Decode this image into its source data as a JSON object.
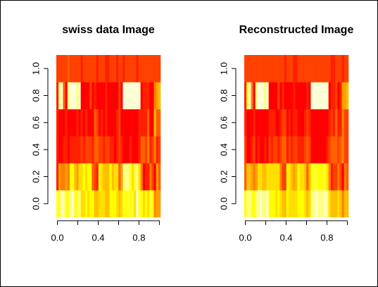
{
  "chart_data": [
    {
      "type": "heatmap",
      "title": "swiss data Image",
      "values": [
        [
          80.2,
          83.1,
          92.5,
          85.8,
          76.9,
          76.1,
          83.8,
          92.4,
          82.4,
          82.9,
          87.1,
          64.1,
          66.9,
          68.9,
          61.7,
          68.3,
          71.7,
          55.7,
          54.3,
          65.1,
          65.5,
          65,
          56.6,
          57.4,
          72.5,
          74.2,
          72,
          60.5,
          58.3,
          65.4,
          75.5,
          69.3,
          77.3,
          70.5,
          79.4,
          65,
          92.2,
          79.3,
          70.4,
          65.7,
          72.7,
          64.4,
          77.6,
          67.6,
          35,
          44.7,
          42.8
        ],
        [
          17,
          45.1,
          39.7,
          36.5,
          43.5,
          35.3,
          70.2,
          67.8,
          53.3,
          45.2,
          64.5,
          62,
          67.5,
          60.7,
          69.3,
          72.6,
          34,
          19.4,
          15.2,
          73,
          59.8,
          55.1,
          50.9,
          54.1,
          71.2,
          58.1,
          63.5,
          60.8,
          26.8,
          49.5,
          85.9,
          84.9,
          89.7,
          78.2,
          64.9,
          75.9,
          84.6,
          63.1,
          38.4,
          7.7,
          16.7,
          17.6,
          37.6,
          18.7,
          1.2,
          46.6,
          27.7
        ],
        [
          15,
          6,
          5,
          12,
          17,
          9,
          16,
          14,
          12,
          16,
          14,
          21,
          14,
          19,
          22,
          18,
          17,
          26,
          31,
          19,
          22,
          14,
          22,
          20,
          12,
          14,
          6,
          16,
          25,
          15,
          3,
          7,
          5,
          12,
          7,
          9,
          3,
          13,
          26,
          29,
          22,
          35,
          15,
          25,
          37,
          16,
          22
        ],
        [
          12,
          9,
          5,
          7,
          15,
          7,
          7,
          8,
          7,
          13,
          6,
          12,
          7,
          12,
          5,
          2,
          8,
          28,
          20,
          9,
          10,
          3,
          12,
          6,
          1,
          8,
          3,
          10,
          19,
          8,
          2,
          6,
          2,
          6,
          3,
          9,
          3,
          13,
          12,
          11,
          13,
          32,
          7,
          7,
          53,
          29,
          29
        ],
        [
          9.96,
          84.84,
          93.4,
          33.77,
          5.16,
          90.57,
          92.85,
          97.16,
          97.67,
          91.38,
          98.61,
          8.52,
          2.27,
          4.43,
          2.82,
          24.2,
          3.3,
          12.11,
          2.15,
          2.84,
          5.23,
          4.52,
          15.14,
          4.2,
          2.4,
          5.23,
          2.56,
          7.72,
          18.46,
          6.1,
          99.71,
          99.68,
          100,
          98.96,
          98.22,
          99.06,
          99.46,
          96.83,
          5.62,
          13.79,
          11.22,
          16.92,
          4.97,
          8.65,
          42.34,
          50.43,
          58.33
        ],
        [
          22.2,
          22.2,
          20.2,
          20.3,
          20.6,
          26.6,
          23.6,
          24.9,
          21,
          24.4,
          24.5,
          16.5,
          19.1,
          22.7,
          18.7,
          21.2,
          20,
          20.2,
          10.8,
          20,
          18,
          22.4,
          16.7,
          15.3,
          21,
          23.8,
          18,
          16.3,
          20.9,
          22.5,
          15.1,
          19.8,
          18.3,
          19.4,
          20.2,
          17.8,
          16.3,
          18.1,
          20.3,
          20.5,
          18.9,
          23,
          20,
          19.5,
          18,
          18.2,
          19.3
        ]
      ],
      "zlim": [
        1.2,
        100
      ],
      "palette": [
        "#FF0000",
        "#FF2000",
        "#FF4000",
        "#FF6000",
        "#FF8000",
        "#FF9F00",
        "#FFBF00",
        "#FFDF00",
        "#FFFF00",
        "#FFFF2A",
        "#FFFF80",
        "#FFFFD5"
      ],
      "xlim": [
        -0.0109,
        1.0109
      ],
      "ylim": [
        -0.1,
        1.1
      ],
      "xticks": [
        {
          "value": 0,
          "label": "0.0"
        },
        {
          "value": 0.2
        },
        {
          "value": 0.4,
          "label": "0.4"
        },
        {
          "value": 0.6
        },
        {
          "value": 0.8,
          "label": "0.8"
        },
        {
          "value": 1
        }
      ],
      "yticks": [
        {
          "value": 0,
          "label": "0.0"
        },
        {
          "value": 0.2,
          "label": "0.2"
        },
        {
          "value": 0.4,
          "label": "0.4"
        },
        {
          "value": 0.6,
          "label": "0.6"
        },
        {
          "value": 0.8,
          "label": "0.8"
        },
        {
          "value": 1,
          "label": "1.0"
        }
      ]
    },
    {
      "type": "heatmap",
      "title": "Reconstructed Image",
      "values": [
        [
          70,
          85,
          88,
          75,
          68,
          84,
          88,
          90,
          88,
          86,
          90,
          66,
          66,
          68,
          64,
          70,
          62,
          56,
          52,
          68,
          64,
          62,
          58,
          58,
          70,
          68,
          68,
          62,
          56,
          64,
          88,
          88,
          90,
          88,
          86,
          88,
          90,
          86,
          60,
          52,
          54,
          50,
          60,
          56,
          40,
          56,
          52
        ],
        [
          30,
          50,
          50,
          42,
          40,
          48,
          62,
          62,
          56,
          50,
          60,
          58,
          60,
          58,
          64,
          64,
          36,
          24,
          20,
          66,
          58,
          56,
          48,
          52,
          66,
          58,
          62,
          56,
          30,
          52,
          72,
          74,
          76,
          72,
          68,
          70,
          74,
          62,
          36,
          16,
          22,
          20,
          38,
          24,
          8,
          40,
          30
        ],
        [
          18,
          8,
          6,
          12,
          18,
          8,
          10,
          8,
          8,
          10,
          6,
          18,
          16,
          18,
          20,
          16,
          18,
          26,
          30,
          16,
          18,
          16,
          22,
          20,
          14,
          16,
          14,
          18,
          26,
          18,
          4,
          4,
          4,
          6,
          6,
          6,
          4,
          10,
          24,
          30,
          26,
          32,
          18,
          26,
          36,
          20,
          24
        ],
        [
          12,
          6,
          4,
          8,
          14,
          6,
          4,
          4,
          4,
          8,
          4,
          10,
          10,
          10,
          8,
          6,
          10,
          22,
          22,
          8,
          10,
          8,
          12,
          10,
          4,
          8,
          6,
          10,
          18,
          10,
          2,
          2,
          2,
          4,
          4,
          4,
          2,
          8,
          14,
          18,
          16,
          26,
          10,
          16,
          40,
          22,
          24
        ],
        [
          12,
          80,
          90,
          40,
          8,
          86,
          92,
          96,
          94,
          88,
          96,
          8,
          4,
          6,
          4,
          20,
          6,
          14,
          6,
          6,
          8,
          8,
          14,
          6,
          4,
          8,
          4,
          8,
          16,
          8,
          96,
          96,
          98,
          96,
          94,
          96,
          96,
          92,
          8,
          12,
          12,
          18,
          8,
          10,
          42,
          48,
          54
        ],
        [
          20,
          22,
          22,
          20,
          19,
          22,
          23,
          23,
          22,
          22,
          23,
          18,
          18,
          19,
          18,
          19,
          18,
          18,
          14,
          19,
          18,
          19,
          17,
          17,
          20,
          20,
          19,
          18,
          18,
          19,
          22,
          22,
          22,
          22,
          22,
          22,
          22,
          22,
          18,
          16,
          17,
          18,
          18,
          18,
          16,
          18,
          18
        ]
      ],
      "zlim": [
        2,
        98
      ],
      "palette": [
        "#FF0000",
        "#FF2000",
        "#FF4000",
        "#FF6000",
        "#FF8000",
        "#FF9F00",
        "#FFBF00",
        "#FFDF00",
        "#FFFF00",
        "#FFFF2A",
        "#FFFF80",
        "#FFFFD5"
      ],
      "xlim": [
        -0.0109,
        1.0109
      ],
      "ylim": [
        -0.1,
        1.1
      ],
      "xticks": [
        {
          "value": 0,
          "label": "0.0"
        },
        {
          "value": 0.2
        },
        {
          "value": 0.4,
          "label": "0.4"
        },
        {
          "value": 0.6
        },
        {
          "value": 0.8,
          "label": "0.8"
        },
        {
          "value": 1
        }
      ],
      "yticks": [
        {
          "value": 0,
          "label": "0.0"
        },
        {
          "value": 0.2,
          "label": "0.2"
        },
        {
          "value": 0.4,
          "label": "0.4"
        },
        {
          "value": 0.6,
          "label": "0.6"
        },
        {
          "value": 0.8,
          "label": "0.8"
        },
        {
          "value": 1,
          "label": "1.0"
        }
      ]
    }
  ]
}
